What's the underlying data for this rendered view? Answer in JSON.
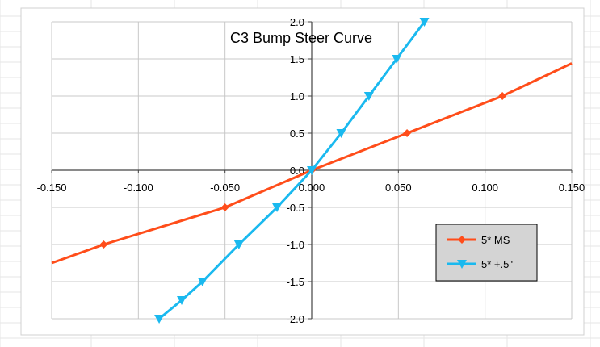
{
  "chart_data": {
    "type": "line",
    "title": "C3 Bump Steer Curve",
    "xlabel": "",
    "ylabel": "",
    "xlim": [
      -0.15,
      0.15
    ],
    "ylim": [
      -2.0,
      2.0
    ],
    "x_ticks": [
      -0.15,
      -0.1,
      -0.05,
      0.0,
      0.05,
      0.1,
      0.15
    ],
    "x_tick_labels": [
      "-0.150",
      "-0.100",
      "-0.050",
      "0.000",
      "0.050",
      "0.100",
      "0.150"
    ],
    "y_ticks": [
      2.0,
      1.5,
      1.0,
      0.5,
      0.0,
      -0.5,
      -1.0,
      -1.5,
      -2.0
    ],
    "y_tick_labels": [
      "2.0",
      "1.5",
      "1.0",
      "0.5",
      "0.0",
      "-0.5",
      "-1.0",
      "-1.5",
      "-2.0"
    ],
    "grid": true,
    "legend_position": "lower-right",
    "series": [
      {
        "name": "5* MS",
        "color": "#ff4d1a",
        "marker": "diamond",
        "points": [
          [
            -0.15,
            -1.25
          ],
          [
            -0.12,
            -1.0
          ],
          [
            -0.05,
            -0.5
          ],
          [
            0.0,
            0.0
          ],
          [
            0.055,
            0.5
          ],
          [
            0.11,
            1.0
          ],
          [
            0.15,
            1.44
          ]
        ],
        "marked": [
          false,
          true,
          true,
          true,
          true,
          true,
          false
        ]
      },
      {
        "name": "5* +.5\"",
        "color": "#1ab9ef",
        "marker": "triangle-down",
        "points": [
          [
            -0.088,
            -2.0
          ],
          [
            -0.075,
            -1.75
          ],
          [
            -0.063,
            -1.5
          ],
          [
            -0.042,
            -1.0
          ],
          [
            -0.02,
            -0.5
          ],
          [
            0.0,
            0.0
          ],
          [
            0.017,
            0.5
          ],
          [
            0.033,
            1.0
          ],
          [
            0.049,
            1.5
          ],
          [
            0.065,
            2.0
          ]
        ],
        "marked": [
          true,
          true,
          true,
          true,
          true,
          true,
          true,
          true,
          true,
          true
        ]
      }
    ]
  }
}
